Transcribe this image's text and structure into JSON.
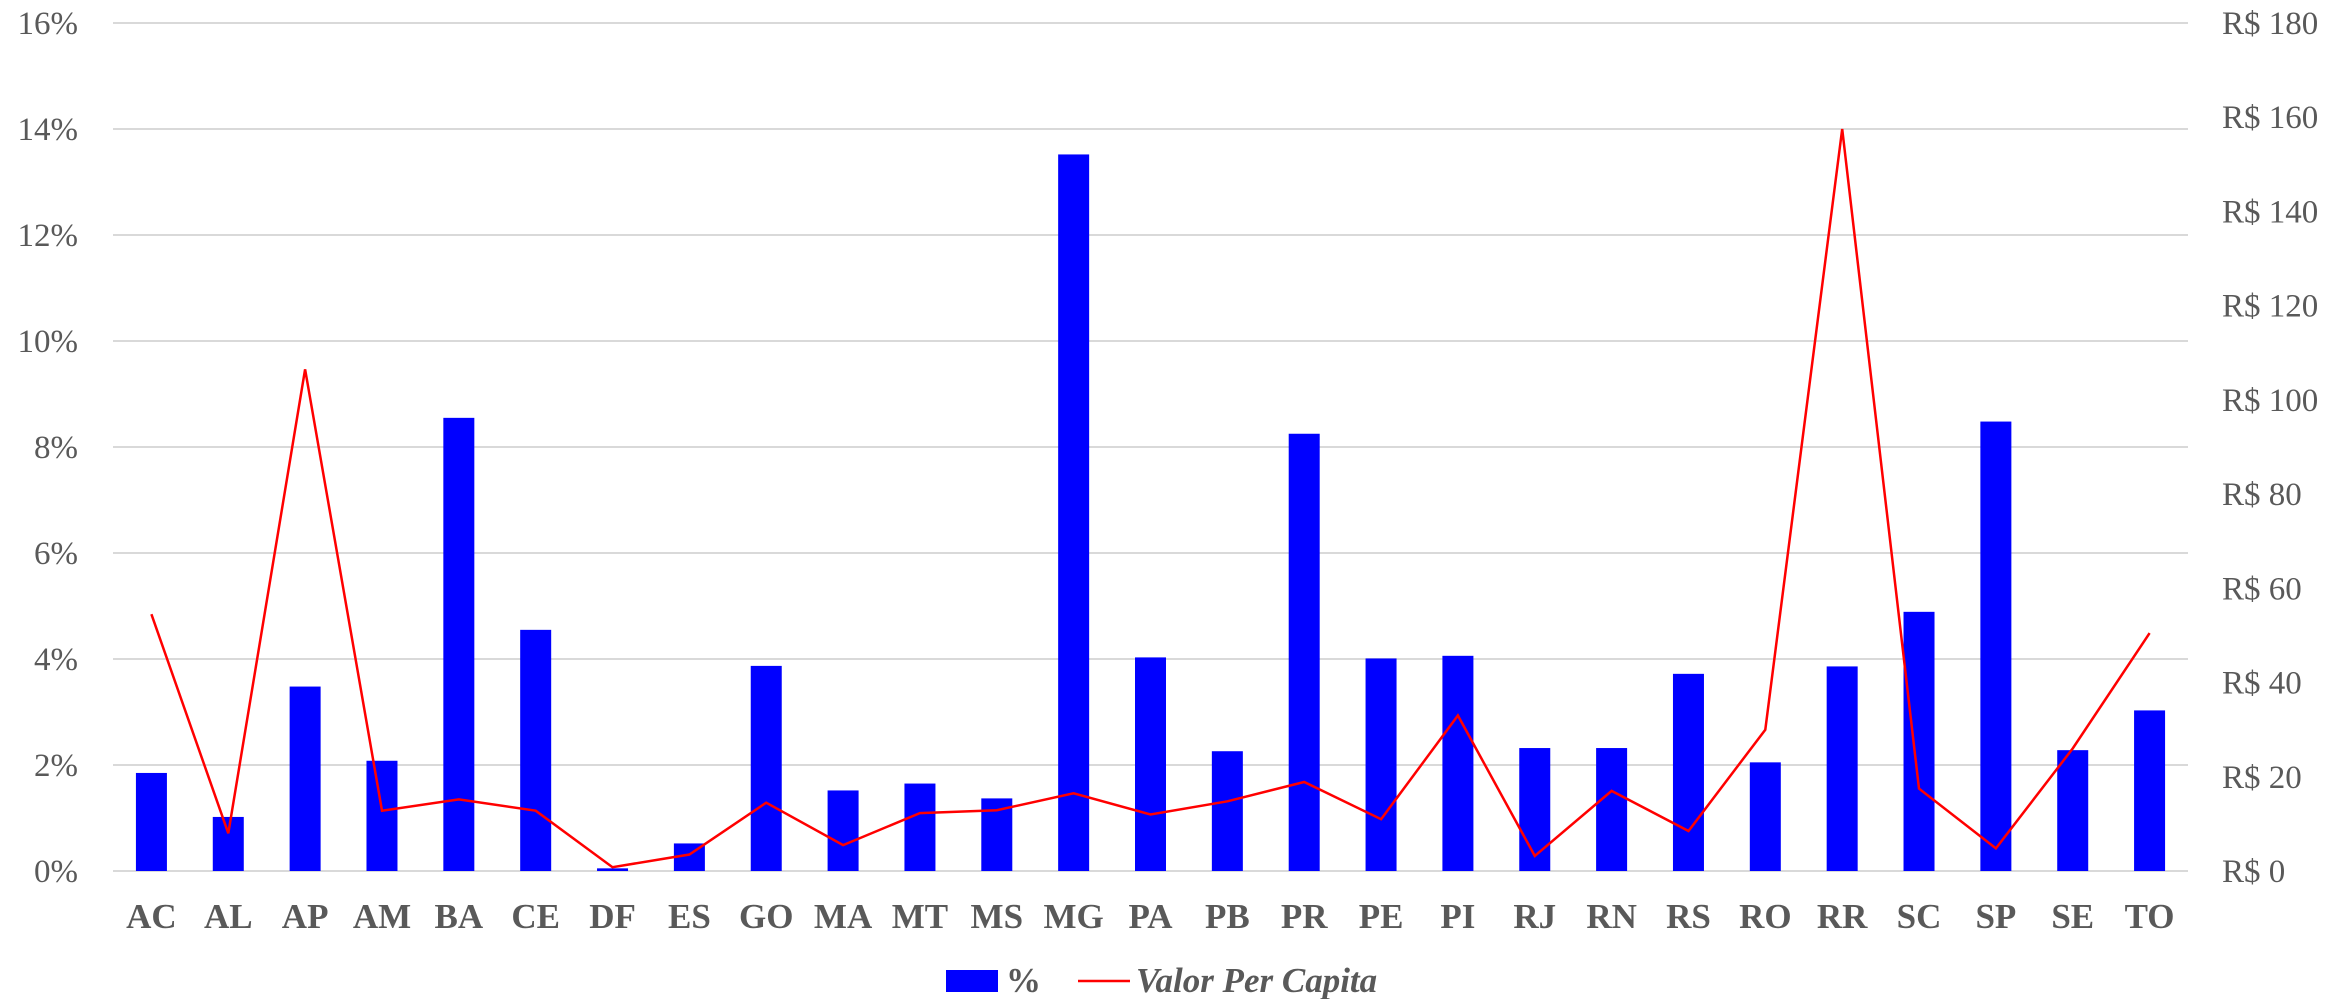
{
  "chart_data": {
    "type": "bar",
    "categories": [
      "AC",
      "AL",
      "AP",
      "AM",
      "BA",
      "CE",
      "DF",
      "ES",
      "GO",
      "MA",
      "MT",
      "MS",
      "MG",
      "PA",
      "PB",
      "PR",
      "PE",
      "PI",
      "RJ",
      "RN",
      "RS",
      "RO",
      "RR",
      "SC",
      "SP",
      "SE",
      "TO"
    ],
    "series": [
      {
        "name": "%",
        "type": "bar",
        "axis": "left",
        "color": "#0000ff",
        "values": [
          1.85,
          1.02,
          3.48,
          2.08,
          8.55,
          4.55,
          0.05,
          0.52,
          3.87,
          1.52,
          1.65,
          1.37,
          13.52,
          4.03,
          2.26,
          8.25,
          4.01,
          4.06,
          2.32,
          2.32,
          3.72,
          2.05,
          3.86,
          4.89,
          8.48,
          2.28,
          3.03
        ]
      },
      {
        "name": "Valor Per Capita",
        "type": "line",
        "axis": "right",
        "color": "#ff0000",
        "values": [
          54.5,
          8.0,
          106.5,
          12.8,
          15.2,
          12.8,
          0.8,
          3.5,
          14.5,
          5.5,
          12.3,
          12.9,
          16.5,
          12.0,
          14.8,
          18.9,
          11.0,
          33.0,
          3.2,
          17.0,
          8.5,
          30.0,
          157.5,
          17.5,
          4.8,
          26.0,
          50.5
        ]
      }
    ],
    "y_left": {
      "ylim": [
        0,
        16
      ],
      "ticks": [
        0,
        2,
        4,
        6,
        8,
        10,
        12,
        14,
        16
      ],
      "tick_labels": [
        "0%",
        "2%",
        "4%",
        "6%",
        "8%",
        "10%",
        "12%",
        "14%",
        "16%"
      ]
    },
    "y_right": {
      "ylim": [
        0,
        180
      ],
      "ticks": [
        0,
        20,
        40,
        60,
        80,
        100,
        120,
        140,
        160,
        180
      ],
      "tick_labels": [
        "R$ 0",
        "R$ 20",
        "R$ 40",
        "R$ 60",
        "R$ 80",
        "R$ 100",
        "R$ 120",
        "R$ 140",
        "R$ 160",
        "R$ 180"
      ]
    },
    "grid": true,
    "legend": {
      "position": "bottom",
      "entries": [
        {
          "label": "%",
          "marker": "bar",
          "color": "#0000ff"
        },
        {
          "label": "Valor Per Capita",
          "marker": "line",
          "color": "#ff0000"
        }
      ]
    },
    "colors": {
      "tick_text": "#595959",
      "gridline": "#d9d9d9"
    }
  }
}
